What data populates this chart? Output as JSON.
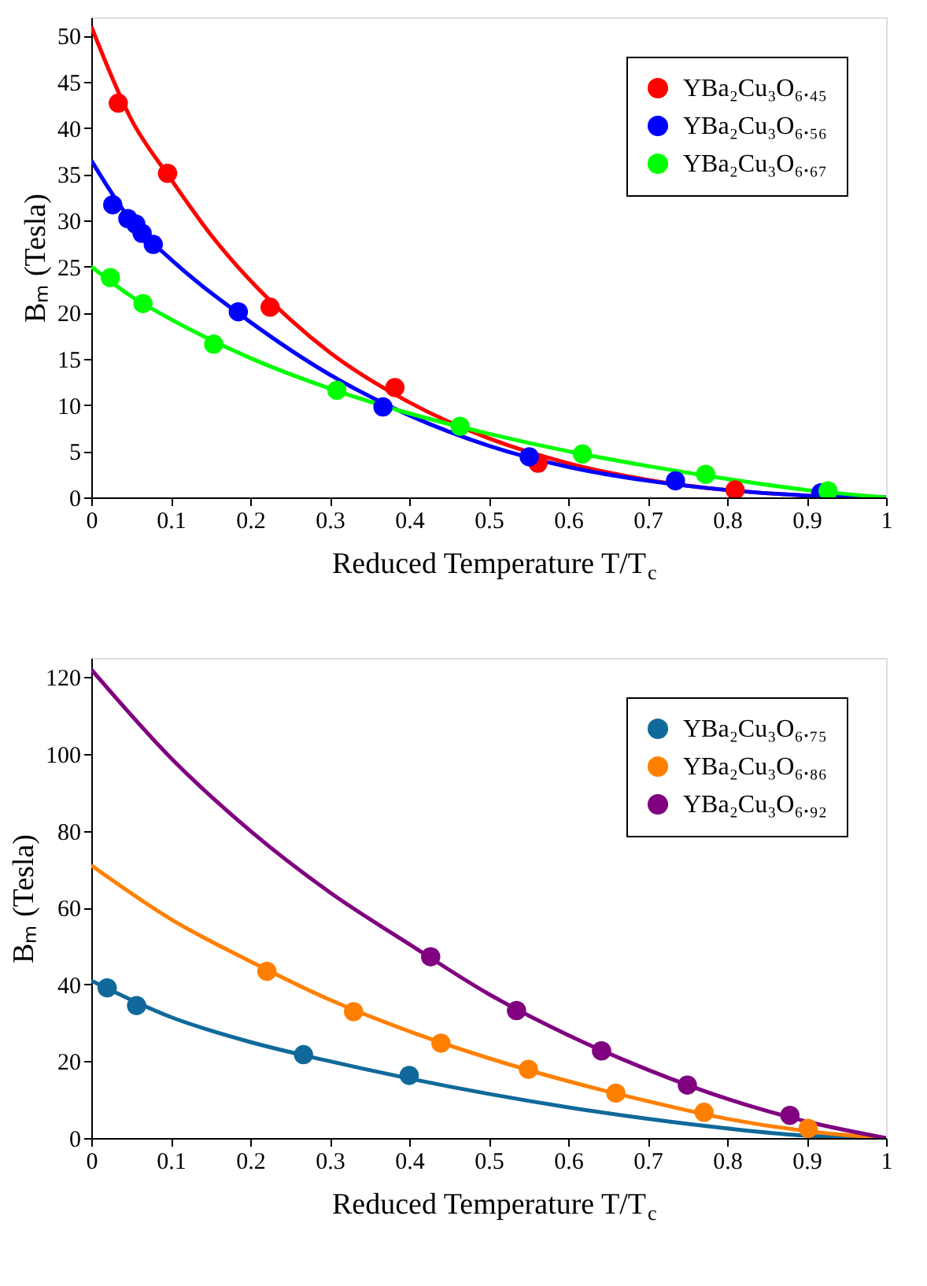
{
  "chart_data": [
    {
      "type": "scatter",
      "xlabel": "Reduced Temperature T/T$_{c}$",
      "ylabel": "Bₘ (Tesla)",
      "xlim": [
        0,
        1
      ],
      "ylim": [
        0,
        52
      ],
      "xticks": [
        {
          "value": 0,
          "label": "0"
        },
        0.1,
        0.2,
        0.3,
        0.4,
        0.5,
        0.6,
        0.7,
        0.8,
        0.9,
        {
          "value": 1,
          "label": "1"
        }
      ],
      "yticks": [
        0,
        5,
        10,
        15,
        20,
        25,
        30,
        35,
        40,
        45,
        50
      ],
      "grid": false,
      "legend": "top right",
      "series": [
        {
          "name": "YBa₂Cu₃O₆.₄₅",
          "color": "#ff0000",
          "marker": "circle",
          "x": [
            0.034,
            0.096,
            0.225,
            0.382,
            0.562,
            0.81
          ],
          "values": [
            42.7,
            35.1,
            20.6,
            11.9,
            3.7,
            0.8
          ]
        },
        {
          "name": "YBa₂Cu₃O₆.₅₆",
          "color": "#0000ff",
          "marker": "circle",
          "x": [
            0.027,
            0.046,
            0.056,
            0.064,
            0.078,
            0.185,
            0.367,
            0.551,
            0.735,
            0.918
          ],
          "values": [
            31.7,
            30.2,
            29.6,
            28.6,
            27.4,
            20.1,
            9.8,
            4.4,
            1.8,
            0.5
          ]
        },
        {
          "name": "YBa₂Cu₃O₆.₆₇",
          "color": "#00ff00",
          "marker": "circle",
          "x": [
            0.024,
            0.065,
            0.154,
            0.309,
            0.464,
            0.618,
            0.773,
            0.927
          ],
          "values": [
            23.8,
            21.0,
            16.6,
            11.6,
            7.7,
            4.7,
            2.5,
            0.7
          ]
        },
        {
          "color": "#ff0000",
          "type": "line",
          "x": [
            0,
            0.05,
            0.1,
            0.15,
            0.2,
            0.25,
            0.3,
            0.4,
            0.5,
            0.6,
            0.7,
            0.8,
            0.9,
            1
          ],
          "values": [
            51,
            41,
            34.5,
            28.5,
            23.5,
            19.3,
            15.7,
            10.3,
            6.4,
            3.7,
            1.9,
            0.8,
            0.2,
            0
          ]
        },
        {
          "color": "#0000ff",
          "type": "line",
          "x": [
            0,
            0.05,
            0.1,
            0.2,
            0.3,
            0.4,
            0.5,
            0.6,
            0.7,
            0.8,
            0.9,
            1
          ],
          "values": [
            36.5,
            30,
            25.8,
            19,
            13.3,
            8.9,
            5.6,
            3.3,
            1.8,
            0.8,
            0.2,
            0
          ]
        },
        {
          "color": "#00ff00",
          "type": "line",
          "x": [
            0,
            0.05,
            0.1,
            0.2,
            0.3,
            0.4,
            0.5,
            0.6,
            0.7,
            0.8,
            0.9,
            1
          ],
          "values": [
            25,
            21.8,
            19.3,
            15.1,
            11.8,
            9.1,
            6.9,
            5,
            3.4,
            2,
            0.8,
            0
          ]
        }
      ]
    },
    {
      "type": "scatter",
      "xlabel": "Reduced Temperature T/T$_{c}$",
      "ylabel": "Bₘ (Tesla)",
      "xlim": [
        0,
        1
      ],
      "ylim": [
        0,
        125
      ],
      "xticks": [
        {
          "value": 0,
          "label": "0"
        },
        0.1,
        0.2,
        0.3,
        0.4,
        0.5,
        0.6,
        0.7,
        0.8,
        0.9,
        {
          "value": 1,
          "label": "1"
        }
      ],
      "yticks": [
        0,
        20,
        40,
        60,
        80,
        100,
        120
      ],
      "grid": false,
      "legend": "top right",
      "series": [
        {
          "name": "YBa₂Cu₃O₆.₇₅",
          "color": "#10699a",
          "marker": "circle",
          "x": [
            0.02,
            0.057,
            0.267,
            0.4
          ],
          "values": [
            39.1,
            34.5,
            21.7,
            16.3
          ]
        },
        {
          "name": "YBa₂Cu₃O₆.₈₆",
          "color": "#ff8000",
          "marker": "circle",
          "x": [
            0.221,
            0.33,
            0.44,
            0.55,
            0.66,
            0.771,
            0.902
          ],
          "values": [
            43.4,
            32.9,
            24.7,
            17.9,
            11.7,
            6.7,
            2.5
          ]
        },
        {
          "name": "YBa₂Cu₃O₆.₉₂",
          "color": "#800080",
          "marker": "circle",
          "x": [
            0.427,
            0.535,
            0.642,
            0.75,
            0.879
          ],
          "values": [
            47.2,
            33.2,
            22.7,
            13.8,
            5.9
          ]
        },
        {
          "color": "#10699a",
          "type": "line",
          "x": [
            0,
            0.1,
            0.2,
            0.3,
            0.4,
            0.5,
            0.6,
            0.7,
            0.8,
            0.9,
            1
          ],
          "values": [
            41,
            31.5,
            25,
            20,
            15.5,
            11.5,
            8,
            5,
            2.5,
            0.6,
            0
          ]
        },
        {
          "color": "#ff8000",
          "type": "line",
          "x": [
            0,
            0.1,
            0.2,
            0.3,
            0.4,
            0.5,
            0.6,
            0.7,
            0.8,
            0.9,
            1
          ],
          "values": [
            71,
            57,
            46,
            36,
            27.8,
            20.8,
            14.8,
            9.6,
            5,
            1.8,
            0
          ]
        },
        {
          "color": "#800080",
          "type": "line",
          "x": [
            0,
            0.1,
            0.2,
            0.3,
            0.4,
            0.5,
            0.6,
            0.7,
            0.8,
            0.9,
            1
          ],
          "values": [
            122,
            99,
            80,
            64,
            50.5,
            37.5,
            26.8,
            17.8,
            10.2,
            4.3,
            0
          ]
        }
      ]
    }
  ]
}
